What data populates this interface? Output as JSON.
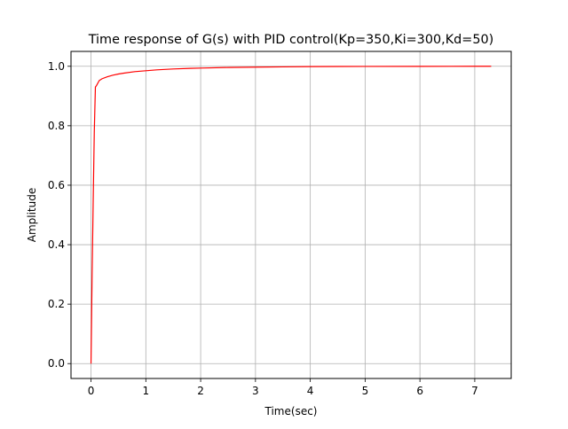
{
  "chart_data": {
    "type": "line",
    "title": "Time response of G(s) with PID control(Kp=350,Ki=300,Kd=50)",
    "xlabel": "Time(sec)",
    "ylabel": "Amplitude",
    "xlim": [
      -0.365,
      7.665
    ],
    "ylim": [
      -0.05,
      1.05
    ],
    "xticks": [
      0,
      1,
      2,
      3,
      4,
      5,
      6,
      7
    ],
    "xtick_labels": [
      "0",
      "1",
      "2",
      "3",
      "4",
      "5",
      "6",
      "7"
    ],
    "yticks": [
      0.0,
      0.2,
      0.4,
      0.6,
      0.8,
      1.0
    ],
    "ytick_labels": [
      "0.0",
      "0.2",
      "0.4",
      "0.6",
      "0.8",
      "1.0"
    ],
    "grid": true,
    "series": [
      {
        "color": "#ff0000",
        "x": [
          0,
          0.02,
          0.04,
          0.06,
          0.08,
          0.1,
          0.15,
          0.2,
          0.3,
          0.4,
          0.5,
          0.6,
          0.8,
          1.0,
          1.2,
          1.5,
          1.8,
          2.0,
          2.5,
          3.0,
          3.5,
          4.0,
          5.0,
          6.0,
          7.0,
          7.3
        ],
        "y": [
          0.0,
          0.3,
          0.55,
          0.78,
          0.93,
          0.935,
          0.952,
          0.958,
          0.965,
          0.97,
          0.974,
          0.977,
          0.982,
          0.985,
          0.988,
          0.991,
          0.993,
          0.994,
          0.996,
          0.997,
          0.998,
          0.999,
          0.9995,
          0.9998,
          1.0,
          1.0
        ]
      }
    ]
  }
}
